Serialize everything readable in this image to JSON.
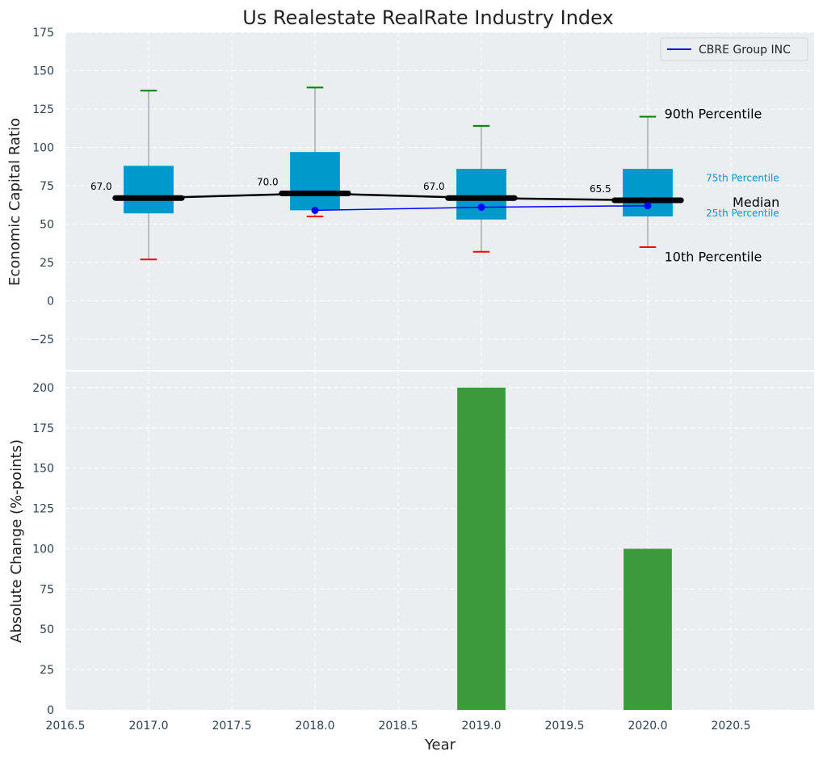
{
  "colors": {
    "panel_bg": "#eaeef0",
    "box_fill": "#0099cc",
    "median_line": "#000000",
    "company_line": "#0000ff",
    "p90_cap": "#008000",
    "p10_cap": "#ff0000",
    "bar_fill": "#3c9a3c",
    "tick_text": "#2b3f55",
    "percentile_label": "#0099cc"
  },
  "chart_data": [
    {
      "type": "box",
      "title": "Us Realestate RealRate Industry Index",
      "ylabel": "Economic Capital Ratio",
      "xlim": [
        2016.5,
        2021.0
      ],
      "ylim": [
        -45,
        175
      ],
      "yticks": [
        -25,
        0,
        25,
        50,
        75,
        100,
        125,
        150,
        175
      ],
      "yticklabels": [
        "−25",
        "0",
        "25",
        "50",
        "75",
        "100",
        "125",
        "150",
        "175"
      ],
      "grid": true,
      "years": [
        2017,
        2018,
        2019,
        2020
      ],
      "p10": [
        27,
        55,
        32,
        35
      ],
      "p25": [
        57,
        59,
        53,
        55
      ],
      "median": [
        67.0,
        70.0,
        67.0,
        65.5
      ],
      "median_labels": [
        "67.0",
        "70.0",
        "67.0",
        "65.5"
      ],
      "p75": [
        88,
        97,
        86,
        86
      ],
      "p90": [
        137,
        139,
        114,
        120
      ],
      "series": [
        {
          "name": "CBRE Group INC",
          "x": [
            2018,
            2019,
            2020
          ],
          "values": [
            59,
            61,
            62
          ]
        }
      ],
      "legend": {
        "position": "top-right",
        "entries": [
          "CBRE Group INC"
        ]
      },
      "annotations": {
        "p90": "90th Percentile",
        "p75": "75th Percentile",
        "median": "Median",
        "p25": "25th Percentile",
        "p10": "10th Percentile"
      }
    },
    {
      "type": "bar",
      "xlabel": "Year",
      "ylabel": "Absolute Change (%-points)",
      "xlim": [
        2016.5,
        2021.0
      ],
      "ylim": [
        0,
        210
      ],
      "xticks": [
        2016.5,
        2017.0,
        2017.5,
        2018.0,
        2018.5,
        2019.0,
        2019.5,
        2020.0,
        2020.5
      ],
      "xticklabels": [
        "2016.5",
        "2017.0",
        "2017.5",
        "2018.0",
        "2018.5",
        "2019.0",
        "2019.5",
        "2020.0",
        "2020.5"
      ],
      "yticks": [
        0,
        25,
        50,
        75,
        100,
        125,
        150,
        175,
        200
      ],
      "yticklabels": [
        "0",
        "25",
        "50",
        "75",
        "100",
        "125",
        "150",
        "175",
        "200"
      ],
      "grid": true,
      "categories": [
        2019,
        2020
      ],
      "values": [
        200,
        100
      ]
    }
  ]
}
